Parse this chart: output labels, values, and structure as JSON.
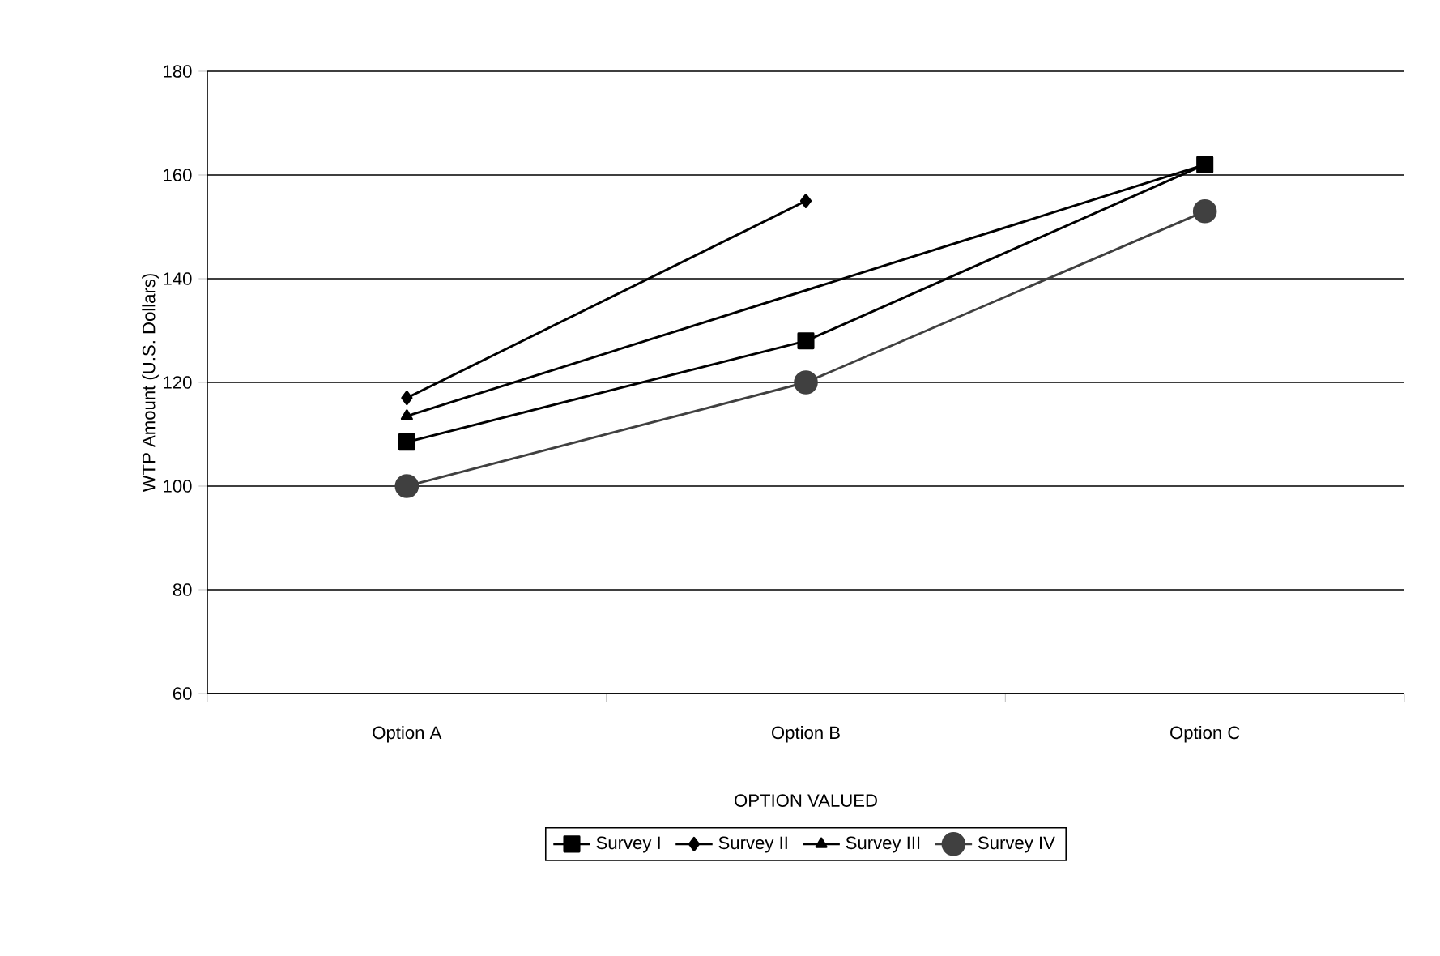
{
  "chart_data": {
    "type": "line",
    "xlabel": "OPTION VALUED",
    "ylabel": "WTP Amount (U.S. Dollars)",
    "categories": [
      "Option A",
      "Option B",
      "Option C"
    ],
    "series": [
      {
        "name": "Survey I",
        "color": "#000000",
        "marker": "square",
        "values": [
          108.5,
          128,
          162
        ]
      },
      {
        "name": "Survey II",
        "color": "#000000",
        "marker": "diamond",
        "values": [
          117,
          155,
          null
        ]
      },
      {
        "name": "Survey III",
        "color": "#000000",
        "marker": "triangle",
        "values": [
          113.5,
          null,
          162
        ]
      },
      {
        "name": "Survey IV",
        "color": "#404040",
        "marker": "circle",
        "values": [
          100,
          120,
          153
        ]
      }
    ],
    "ylim": [
      60,
      180
    ],
    "yticks": [
      60,
      80,
      100,
      120,
      140,
      160,
      180
    ],
    "grid": "y",
    "legend": "bottom",
    "line_style": "solid"
  }
}
